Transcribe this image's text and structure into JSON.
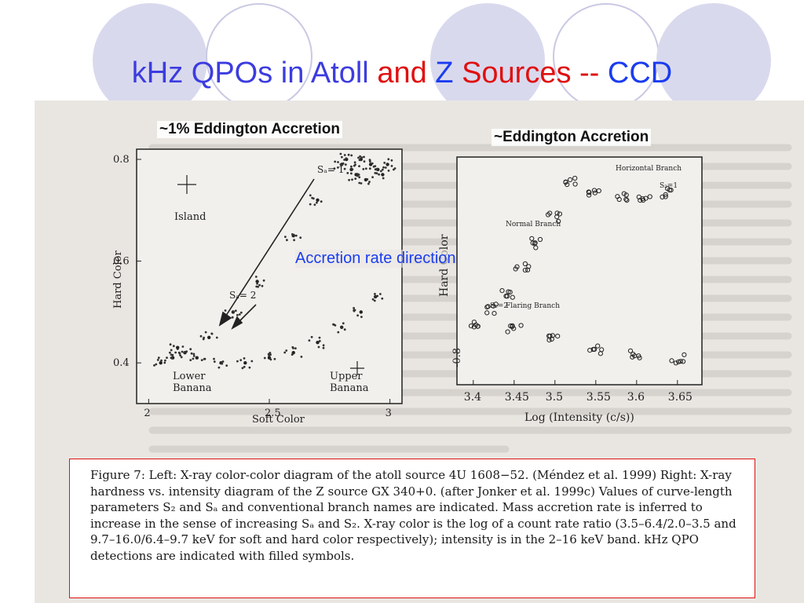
{
  "slide": {
    "title_parts": [
      {
        "text": "kHz QPOs in Atoll ",
        "color": "#3c3ce0"
      },
      {
        "text": "and ",
        "color": "#e01010"
      },
      {
        "text": "Z ",
        "color": "#1a3cf0"
      },
      {
        "text": "Sources ",
        "color": "#e01010"
      },
      {
        "text": "-- ",
        "color": "#e01010"
      },
      {
        "text": "CCD",
        "color": "#1a3cf0"
      }
    ],
    "left_heading": "~1% Eddington Accretion",
    "right_heading": "~Eddington Accretion",
    "arrow_label": "Accretion rate direction",
    "caption": "Figure 7: Left: X-ray color-color diagram of the atoll source 4U 1608−52. (Méndez et al. 1999) Right: X-ray hardness vs. intensity diagram of the Z source GX 340+0. (after Jonker et al. 1999c) Values of curve-length parameters S₂ and Sₐ and conventional branch names are indicated. Mass accretion rate is inferred to increase in the sense of increasing Sₐ and S₂. X-ray color is the log of a count rate ratio (3.5–6.4/2.0–3.5 and 9.7–16.0/6.4–9.7 keV for soft and hard color respectively); intensity is in the 2–16 keV band. kHz QPO detections are indicated with filled symbols."
  },
  "chart_data": [
    {
      "type": "scatter",
      "xlabel": "Soft Color",
      "ylabel": "Hard Color",
      "xlim": [
        1.95,
        3.05
      ],
      "ylim": [
        0.32,
        0.82
      ],
      "x_ticks": [
        "2",
        "2.5",
        "3"
      ],
      "y_ticks": [
        "0.4",
        "0.6",
        "0.8"
      ],
      "annotations": [
        "Island",
        "Lower Banana",
        "Upper Banana",
        "Sₐ= 1",
        "Sₐ= 2"
      ],
      "series": [
        {
          "points": [
            [
              2.8,
              0.79
            ],
            [
              2.84,
              0.78
            ],
            [
              2.88,
              0.8
            ],
            [
              2.92,
              0.79
            ],
            [
              2.95,
              0.78
            ],
            [
              2.99,
              0.79
            ],
            [
              2.86,
              0.77
            ],
            [
              2.9,
              0.76
            ],
            [
              2.97,
              0.77
            ],
            [
              2.82,
              0.8
            ],
            [
              2.7,
              0.72
            ],
            [
              2.6,
              0.65
            ],
            [
              2.45,
              0.56
            ],
            [
              2.35,
              0.5
            ],
            [
              2.25,
              0.45
            ],
            [
              2.15,
              0.42
            ],
            [
              2.1,
              0.41
            ],
            [
              2.05,
              0.4
            ],
            [
              2.12,
              0.43
            ],
            [
              2.2,
              0.41
            ],
            [
              2.3,
              0.4
            ],
            [
              2.4,
              0.4
            ],
            [
              2.5,
              0.41
            ],
            [
              2.6,
              0.42
            ],
            [
              2.7,
              0.44
            ],
            [
              2.8,
              0.47
            ],
            [
              2.88,
              0.5
            ],
            [
              2.94,
              0.53
            ]
          ]
        }
      ]
    },
    {
      "type": "scatter",
      "xlabel": "Log (Intensity (c/s))",
      "ylabel": "Hard Color",
      "xlim": [
        3.38,
        3.68
      ],
      "x_ticks": [
        "3.4",
        "3.45",
        "3.5",
        "3.55",
        "3.6",
        "3.65"
      ],
      "y_ticks": [
        "-0.8"
      ],
      "annotations": [
        "Horizontal Branch",
        "Normal Branch",
        "Flaring Branch",
        "S₂=1",
        "S₂=2"
      ],
      "series": [
        {
          "points": [
            [
              3.52,
              0.95
            ],
            [
              3.55,
              0.93
            ],
            [
              3.58,
              0.92
            ],
            [
              3.61,
              0.92
            ],
            [
              3.64,
              0.93
            ],
            [
              3.5,
              0.88
            ],
            [
              3.48,
              0.83
            ],
            [
              3.46,
              0.78
            ],
            [
              3.44,
              0.73
            ],
            [
              3.42,
              0.7
            ],
            [
              3.4,
              0.67
            ],
            [
              3.45,
              0.66
            ],
            [
              3.5,
              0.64
            ],
            [
              3.55,
              0.62
            ],
            [
              3.6,
              0.61
            ],
            [
              3.65,
              0.6
            ]
          ]
        }
      ]
    }
  ]
}
